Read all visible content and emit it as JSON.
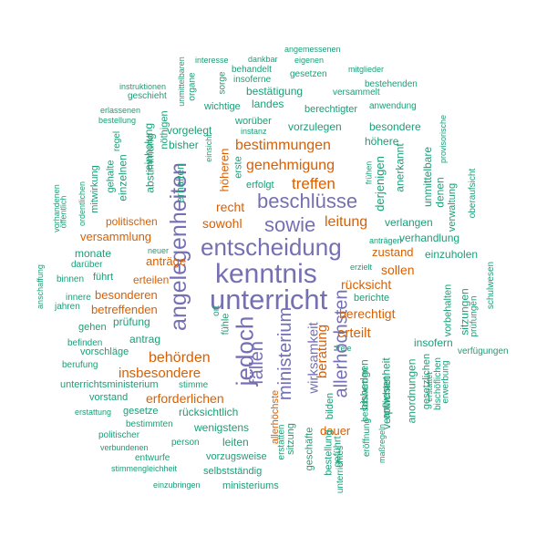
{
  "colors": {
    "green": "#1b9e77",
    "orange": "#d95f02",
    "purple": "#7570b3"
  },
  "words": {
    "kenntnis": "kenntnis",
    "unterricht": "unterricht",
    "entscheidung": "entscheidung",
    "angelegenheiten": "angelegenheiten",
    "jedoch": "jedoch",
    "beschluesse": "beschlüsse",
    "sowie": "sowie",
    "faellen": "fällen",
    "ministerium": "ministerium",
    "allerhoechsten": "allerhöchsten",
    "wirksamkeit": "wirksamkeit",
    "bestimmungen": "bestimmungen",
    "genehmigung": "genehmigung",
    "treffen": "treffen",
    "leitung": "leitung",
    "behoerden": "behörden",
    "insbesondere": "insbesondere",
    "beratung": "beratung",
    "berechtigt": "berechtigt",
    "erteilt": "erteilt",
    "ruecksicht": "rücksicht",
    "sollen": "sollen",
    "zustand": "zustand",
    "sowohl": "sowohl",
    "recht": "recht",
    "versammlung": "versammlung",
    "antraege": "anträge",
    "erteilen": "erteilen",
    "besonderen": "besonderen",
    "betreffenden": "betreffenden",
    "erforderlichen": "erforderlichen",
    "hoeheren": "höheren",
    "dauer": "dauer",
    "allerhoechste": "allerhöchste",
    "politischen": "politischen",
    "vorzulegen": "vorzulegen",
    "vorgelegt": "vorgelegt",
    "bisher": "bisher",
    "erhalten": "erhalten",
    "abstimmung": "abstimmung",
    "einzelnen": "einzelnen",
    "noethigen": "nöthigen",
    "einholung": "einholung",
    "verhandlung": "verhandlung",
    "verlangen": "verlangen",
    "einzuholen": "einzuholen",
    "besondere": "besondere",
    "hoehere": "höhere",
    "anerkannt": "anerkannt",
    "derjenigen": "derjenigen",
    "unmittelbare": "unmittelbare",
    "denen": "denen",
    "verwaltung": "verwaltung",
    "oberaufsicht": "oberaufsicht",
    "sitzungen": "sitzungen",
    "vorbehalten": "vorbehalten",
    "pruefungen": "prüfungen",
    "schulwesen": "schulwesen",
    "insofern": "insofern",
    "anwesenheit": "anwesenheit",
    "anordnungen": "anordnungen",
    "gesetzlichen": "gesetzlichen",
    "verpflichtet": "verpflichtet",
    "bisherigen": "bisherigen",
    "beschwerden": "beschwerden",
    "erwerbung": "erwerbung",
    "bischoeflichen": "bischöflichen",
    "verfuegungen": "verfügungen",
    "eroeffnung": "eröffnung",
    "massregeln": "maßregeln",
    "erzielt": "erzielt",
    "berichte": "berichte",
    "freie": "freie",
    "bestellung": "bestellung",
    "gefuehrt": "geführt",
    "bilden": "bilden",
    "unterrichtes": "unterrichtes",
    "geschaefte": "geschäfte",
    "sitzung": "sitzung",
    "erstatten": "erstatten",
    "pruefung": "prüfung",
    "antrag": "antrag",
    "fuehle": "fühle",
    "ort": "ort",
    "ruecksichtlich": "rücksichtlich",
    "wenigstens": "wenigstens",
    "leiten": "leiten",
    "vorzugsweise": "vorzugsweise",
    "selbststaendig": "selbstständig",
    "ministeriums": "ministeriums",
    "person": "person",
    "entwurfe": "entwurfe",
    "politischer": "politischer",
    "bestimmten": "bestimmten",
    "gesetze": "gesetze",
    "erstattung": "erstattung",
    "vorstand": "vorstand",
    "unterrichtsministerium": "unterrichtsministerium",
    "stimme": "stimme",
    "berufung": "berufung",
    "befinden": "befinden",
    "vorschlaege": "vorschläge",
    "gehen": "gehen",
    "jahren": "jahren",
    "innere": "innere",
    "binnen": "binnen",
    "darueber": "darüber",
    "monate": "monate",
    "fuehrt": "führt",
    "neuer": "neuer",
    "anschaffung": "anschaffung",
    "vorhandenen": "vorhandenen",
    "oeffentlich": "öffentlich",
    "ordentlichen": "ordentlichen",
    "mitwirkung": "mitwirkung",
    "gehalte": "gehalte",
    "regel": "regel",
    "bestellung2": "bestellung",
    "erlassenen": "erlassenen",
    "geschieht": "geschieht",
    "instruktionen": "instruktionen",
    "organe": "organe",
    "unmittelbaren": "unmittelbaren",
    "interesse": "interesse",
    "dankbar": "dankbar",
    "angemessenen": "angemessenen",
    "eigenen": "eigenen",
    "behandelt": "behandelt",
    "insoferne": "insoferne",
    "gesetzen": "gesetzen",
    "sorge": "sorge",
    "bestaetigung": "bestätigung",
    "mitglieder": "mitglieder",
    "bestehenden": "bestehenden",
    "versammelt": "versammelt",
    "wichtige": "wichtige",
    "landes": "landes",
    "berechtigter": "berechtigter",
    "anwendung": "anwendung",
    "woruber": "worüber",
    "instanz": "instanz",
    "einsicht": "einsicht",
    "erste": "erste",
    "erfolgt": "erfolgt",
    "provisorische": "provisorische",
    "fruehen": "frühen",
    "antraegen": "anträgen",
    "verbundenen": "verbundenen",
    "stimmengleichheit": "stimmengleichheit",
    "einzubringen": "einzubringen",
    "erstattet": "erstattet"
  }
}
